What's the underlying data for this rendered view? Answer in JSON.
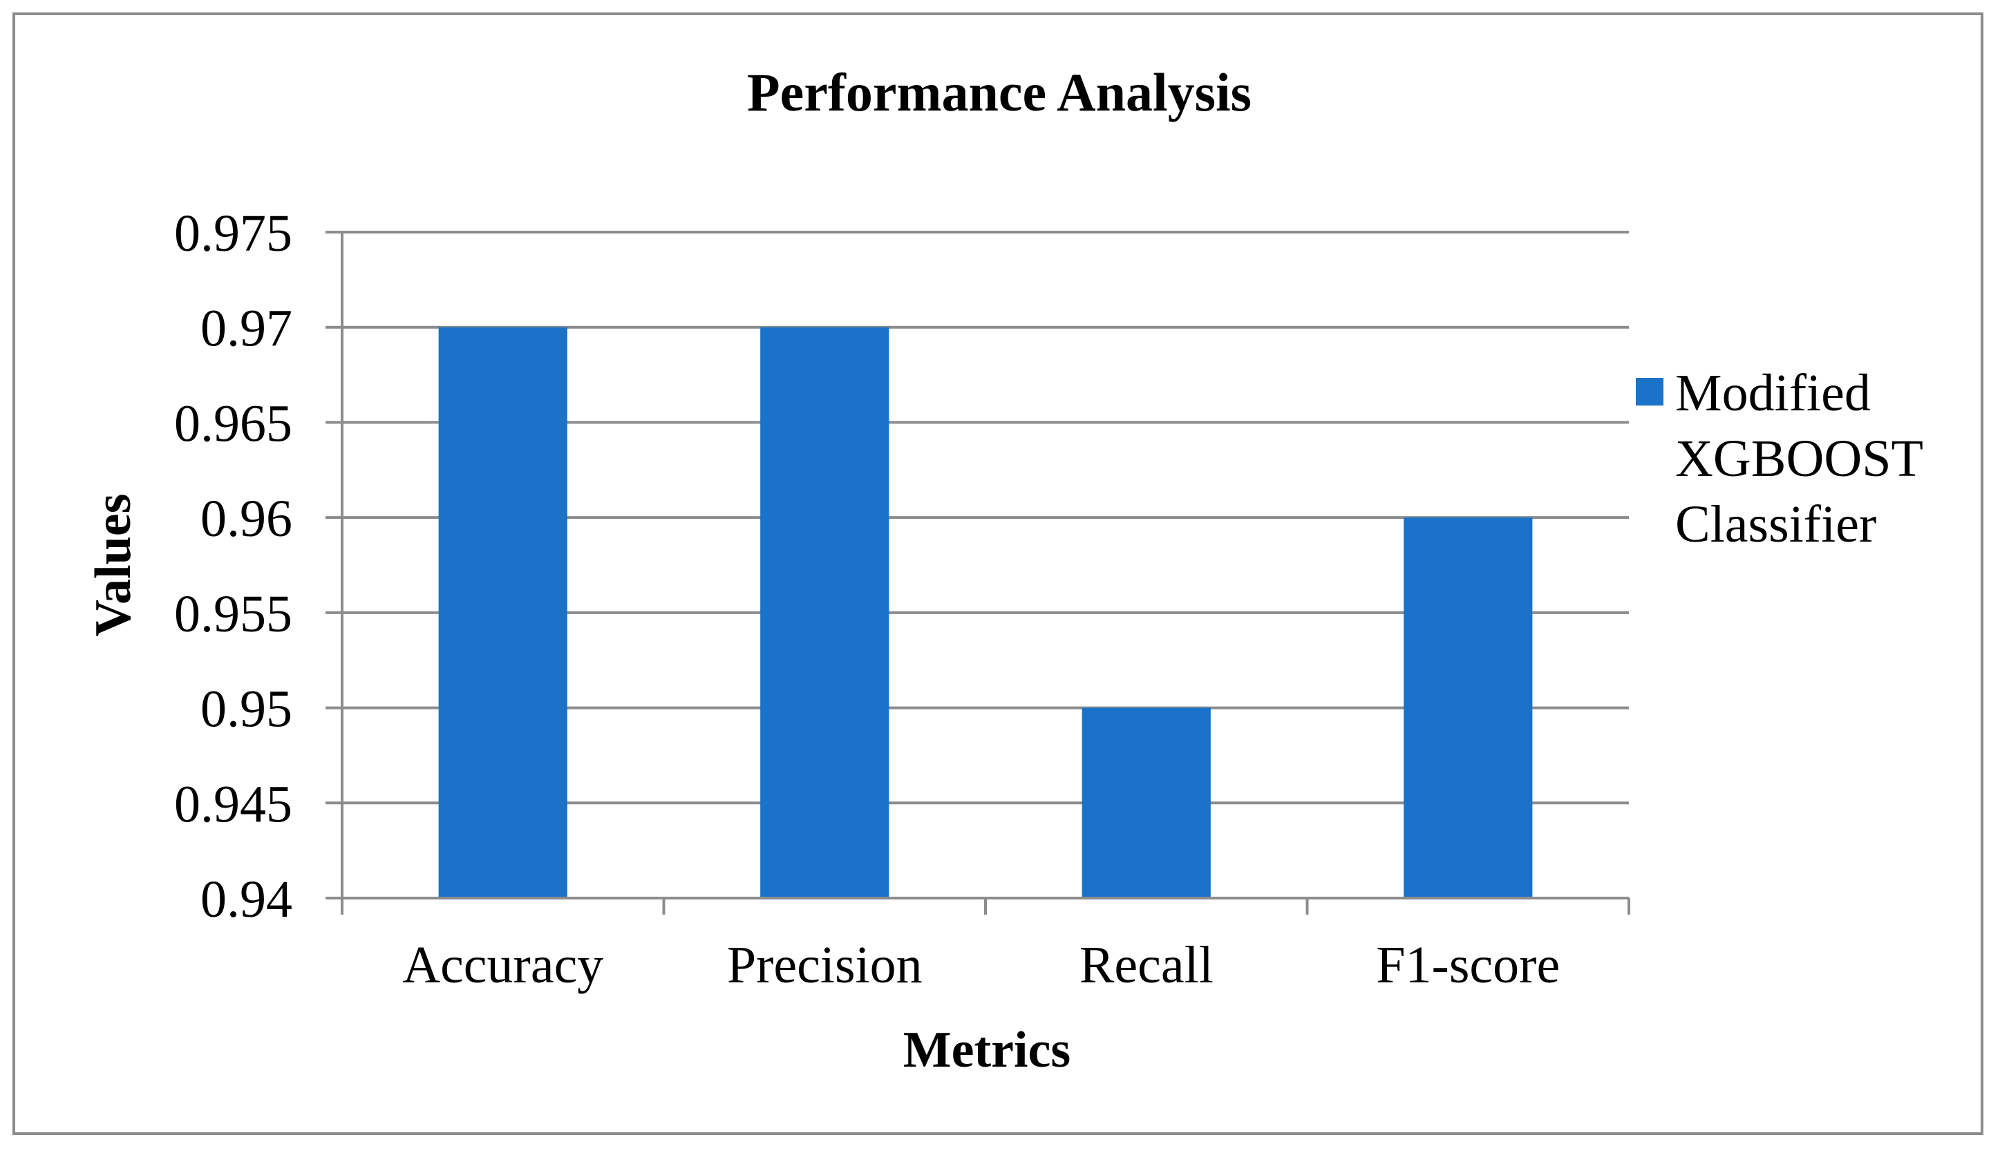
{
  "chart_data": {
    "type": "bar",
    "title": "Performance Analysis",
    "xlabel": "Metrics",
    "ylabel": "Values",
    "categories": [
      "Accuracy",
      "Precision",
      "Recall",
      "F1-score"
    ],
    "series": [
      {
        "name": "Modified XGBOOST Classifier",
        "legend_lines": [
          "Modified",
          "XGBOOST",
          "Classifier"
        ],
        "values": [
          0.97,
          0.97,
          0.95,
          0.96
        ],
        "color": "#1a73c8"
      }
    ],
    "ylim": [
      0.94,
      0.975
    ],
    "yticks": [
      0.94,
      0.945,
      0.95,
      0.955,
      0.96,
      0.965,
      0.97,
      0.975
    ],
    "ytick_labels": [
      "0.94",
      "0.945",
      "0.95",
      "0.955",
      "0.96",
      "0.965",
      "0.97",
      "0.975"
    ],
    "grid": true,
    "grid_color": "#8c8c8c",
    "legend_position": "right"
  }
}
